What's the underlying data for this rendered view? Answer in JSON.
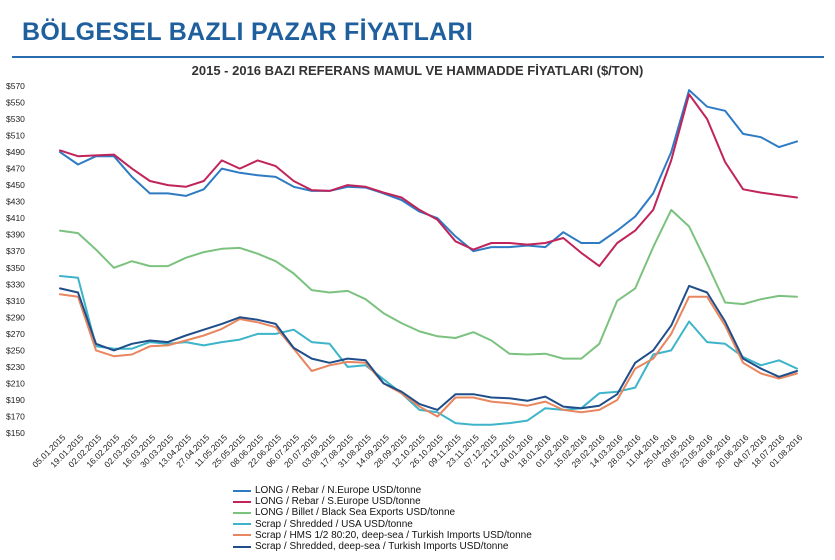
{
  "page": {
    "title": "BÖLGESEL BAZLI PAZAR FİYATLARI"
  },
  "chart_data": {
    "type": "line",
    "title": "2015 - 2016 BAZI REFERANS MAMUL VE HAMMADDE FİYATLARI ($/TON)",
    "xlabel": "",
    "ylabel": "",
    "ylim": [
      150,
      570
    ],
    "yticks": [
      150,
      170,
      190,
      210,
      230,
      250,
      270,
      290,
      310,
      330,
      350,
      370,
      390,
      410,
      430,
      450,
      470,
      490,
      510,
      530,
      550,
      570
    ],
    "ytick_labels": [
      "$150",
      "$170",
      "$190",
      "$210",
      "$230",
      "$250",
      "$270",
      "$290",
      "$310",
      "$330",
      "$350",
      "$370",
      "$390",
      "$410",
      "$430",
      "$450",
      "$470",
      "$490",
      "$510",
      "$530",
      "$550",
      "$570"
    ],
    "grid": false,
    "legend_position": "bottom",
    "categories": [
      "05.01.2015",
      "19.01.2015",
      "02.02.2015",
      "16.02.2015",
      "02.03.2015",
      "16.03.2015",
      "30.03.2015",
      "13.04.2015",
      "27.04.2015",
      "11.05.2015",
      "25.05.2015",
      "08.06.2015",
      "22.06.2015",
      "06.07.2015",
      "20.07.2015",
      "03.08.2015",
      "17.08.2015",
      "31.08.2015",
      "14.09.2015",
      "28.09.2015",
      "12.10.2015",
      "26.10.2015",
      "09.11.2015",
      "23.11.2015",
      "07.12.2015",
      "21.12.2015",
      "04.01.2016",
      "18.01.2016",
      "01.02.2016",
      "15.02.2016",
      "29.02.2016",
      "14.03.2016",
      "28.03.2016",
      "11.04.2016",
      "25.04.2016",
      "09.05.2016",
      "23.05.2016",
      "06.06.2016",
      "20.06.2016",
      "04.07.2016",
      "18.07.2016",
      "01.08.2016"
    ],
    "series": [
      {
        "name": "LONG / Rebar / N.Europe  USD/tonne",
        "color": "#2e7bc4",
        "values": [
          490,
          475,
          485,
          485,
          460,
          440,
          440,
          437,
          445,
          470,
          465,
          462,
          460,
          448,
          443,
          443,
          448,
          447,
          440,
          432,
          418,
          410,
          388,
          370,
          375,
          375,
          377,
          375,
          393,
          380,
          380,
          395,
          412,
          440,
          490,
          565,
          545,
          540,
          512,
          508,
          496,
          503
        ]
      },
      {
        "name": "LONG / Rebar / S.Europe  USD/tonne",
        "color": "#c0245a",
        "values": [
          492,
          485,
          486,
          487,
          470,
          455,
          450,
          448,
          455,
          480,
          470,
          480,
          473,
          455,
          444,
          443,
          450,
          448,
          441,
          435,
          420,
          408,
          382,
          372,
          380,
          380,
          378,
          380,
          386,
          368,
          352,
          380,
          395,
          420,
          480,
          560,
          530,
          478,
          445,
          441,
          438,
          435
        ]
      },
      {
        "name": "LONG / Billet / Black Sea Exports  USD/tonne",
        "color": "#7cc27f",
        "values": [
          395,
          392,
          372,
          350,
          358,
          352,
          352,
          362,
          369,
          373,
          374,
          367,
          358,
          343,
          323,
          320,
          322,
          312,
          295,
          283,
          273,
          267,
          265,
          272,
          262,
          246,
          245,
          246,
          240,
          240,
          258,
          310,
          325,
          375,
          420,
          400,
          355,
          308,
          306,
          312,
          316,
          315
        ]
      },
      {
        "name": "Scrap / Shredded / USA  USD/tonne",
        "color": "#3db4c9",
        "values": [
          340,
          338,
          255,
          252,
          252,
          260,
          258,
          260,
          256,
          260,
          263,
          270,
          270,
          275,
          260,
          258,
          230,
          232,
          215,
          198,
          178,
          175,
          162,
          160,
          160,
          162,
          165,
          180,
          178,
          180,
          198,
          200,
          205,
          245,
          250,
          285,
          260,
          258,
          242,
          232,
          238,
          228
        ]
      },
      {
        "name": "Scrap / HMS 1/2 80:20, deep-sea / Turkish Imports  USD/tonne",
        "color": "#e8865f",
        "values": [
          318,
          315,
          250,
          243,
          245,
          255,
          256,
          262,
          268,
          276,
          288,
          284,
          278,
          252,
          225,
          232,
          236,
          235,
          210,
          198,
          182,
          170,
          193,
          193,
          188,
          186,
          183,
          188,
          178,
          175,
          178,
          190,
          228,
          240,
          270,
          315,
          315,
          280,
          235,
          222,
          216,
          222
        ]
      },
      {
        "name": "Scrap / Shredded, deep-sea / Turkish Imports  USD/tonne",
        "color": "#1f4e8a",
        "values": [
          325,
          320,
          258,
          250,
          258,
          262,
          260,
          268,
          275,
          282,
          290,
          287,
          282,
          253,
          240,
          235,
          240,
          238,
          210,
          200,
          185,
          178,
          197,
          197,
          193,
          192,
          189,
          194,
          182,
          180,
          183,
          197,
          235,
          250,
          280,
          328,
          320,
          285,
          240,
          228,
          218,
          225
        ]
      }
    ]
  }
}
